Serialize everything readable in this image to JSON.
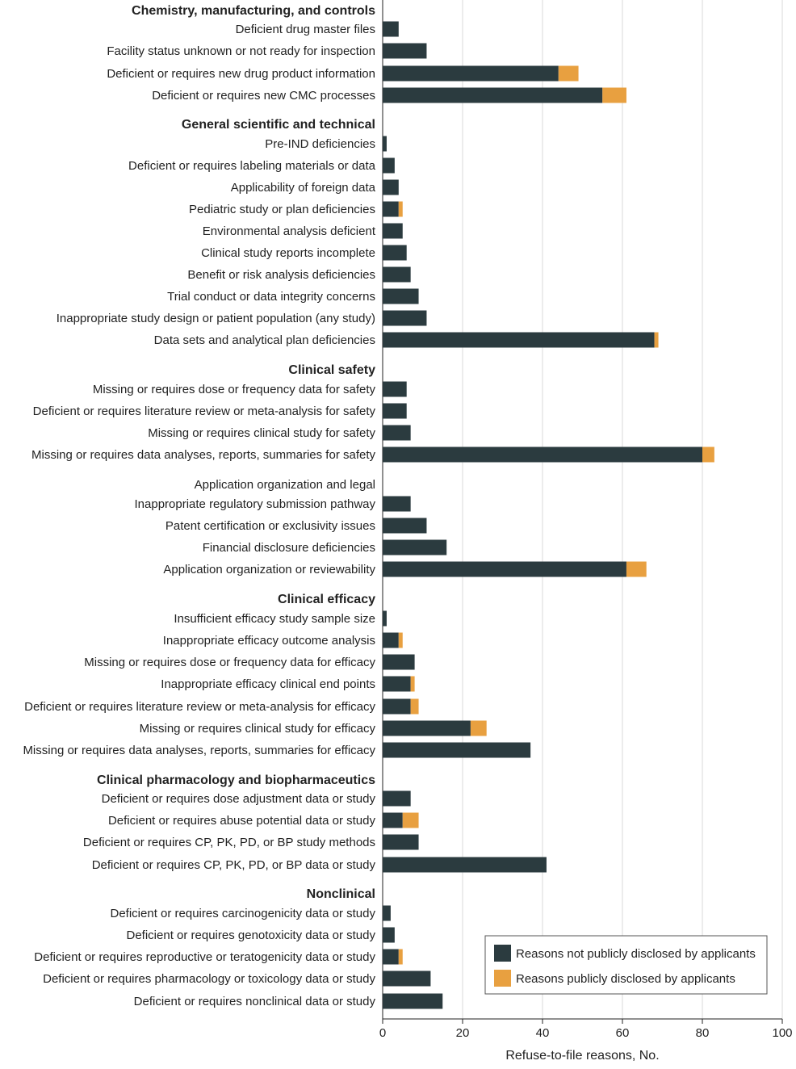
{
  "chart_data": {
    "type": "bar",
    "orientation": "horizontal",
    "stacked": true,
    "xlabel": "Refuse-to-file reasons, No.",
    "xlim": [
      0,
      100
    ],
    "xticks": [
      "0",
      "20",
      "40",
      "60",
      "80",
      "100"
    ],
    "grid": "vertical",
    "legend_position": "bottom-right",
    "series": [
      {
        "name": "Reasons not publicly disclosed by applicants",
        "color": "#2b3b3f"
      },
      {
        "name": "Reasons publicly disclosed by applicants",
        "color": "#e8a040"
      }
    ],
    "groups": [
      {
        "name": "Chemistry, manufacturing, and controls",
        "bold": true,
        "items": [
          {
            "label": "Deficient drug master files",
            "not_disclosed": 4,
            "disclosed": 0
          },
          {
            "label": "Facility status unknown or not ready for inspection",
            "not_disclosed": 11,
            "disclosed": 0
          },
          {
            "label": "Deficient or requires new drug product information",
            "not_disclosed": 44,
            "disclosed": 5
          },
          {
            "label": "Deficient or requires new CMC processes",
            "not_disclosed": 55,
            "disclosed": 6
          }
        ]
      },
      {
        "name": "General scientific and technical",
        "bold": true,
        "items": [
          {
            "label": "Pre-IND deficiencies",
            "not_disclosed": 1,
            "disclosed": 0
          },
          {
            "label": "Deficient or requires labeling materials or data",
            "not_disclosed": 3,
            "disclosed": 0
          },
          {
            "label": "Applicability of foreign data",
            "not_disclosed": 4,
            "disclosed": 0
          },
          {
            "label": "Pediatric study or plan deficiencies",
            "not_disclosed": 4,
            "disclosed": 1
          },
          {
            "label": "Environmental analysis deficient",
            "not_disclosed": 5,
            "disclosed": 0
          },
          {
            "label": "Clinical study reports incomplete",
            "not_disclosed": 6,
            "disclosed": 0
          },
          {
            "label": "Benefit or risk analysis deficiencies",
            "not_disclosed": 7,
            "disclosed": 0
          },
          {
            "label": "Trial conduct or data integrity concerns",
            "not_disclosed": 9,
            "disclosed": 0
          },
          {
            "label": "Inappropriate study design or patient population (any study)",
            "not_disclosed": 11,
            "disclosed": 0
          },
          {
            "label": "Data sets and analytical plan deficiencies",
            "not_disclosed": 68,
            "disclosed": 1
          }
        ]
      },
      {
        "name": "Clinical safety",
        "bold": true,
        "items": [
          {
            "label": "Missing or requires dose or frequency data for safety",
            "not_disclosed": 6,
            "disclosed": 0
          },
          {
            "label": "Deficient or requires literature review or meta-analysis for safety",
            "not_disclosed": 6,
            "disclosed": 0
          },
          {
            "label": "Missing or requires clinical study for safety",
            "not_disclosed": 7,
            "disclosed": 0
          },
          {
            "label": "Missing or requires data analyses, reports, summaries for safety",
            "not_disclosed": 80,
            "disclosed": 3
          }
        ]
      },
      {
        "name": "Application organization and legal",
        "bold": false,
        "items": [
          {
            "label": "Inappropriate regulatory submission pathway",
            "not_disclosed": 7,
            "disclosed": 0
          },
          {
            "label": "Patent certification or exclusivity issues",
            "not_disclosed": 11,
            "disclosed": 0
          },
          {
            "label": "Financial disclosure deficiencies",
            "not_disclosed": 16,
            "disclosed": 0
          },
          {
            "label": "Application organization or reviewability",
            "not_disclosed": 61,
            "disclosed": 5
          }
        ]
      },
      {
        "name": "Clinical efficacy",
        "bold": true,
        "items": [
          {
            "label": "Insufficient efficacy study sample size",
            "not_disclosed": 1,
            "disclosed": 0
          },
          {
            "label": "Inappropriate efficacy outcome analysis",
            "not_disclosed": 4,
            "disclosed": 1
          },
          {
            "label": "Missing or requires dose or frequency data for efficacy",
            "not_disclosed": 8,
            "disclosed": 0
          },
          {
            "label": "Inappropriate efficacy clinical end points",
            "not_disclosed": 7,
            "disclosed": 1
          },
          {
            "label": "Deficient or requires literature review or meta-analysis for efficacy",
            "not_disclosed": 7,
            "disclosed": 2
          },
          {
            "label": "Missing or requires clinical study for efficacy",
            "not_disclosed": 22,
            "disclosed": 4
          },
          {
            "label": "Missing or requires data analyses, reports, summaries for efficacy",
            "not_disclosed": 37,
            "disclosed": 0
          }
        ]
      },
      {
        "name": "Clinical pharmacology and biopharmaceutics",
        "bold": true,
        "items": [
          {
            "label": "Deficient or requires dose adjustment data or study",
            "not_disclosed": 7,
            "disclosed": 0
          },
          {
            "label": "Deficient or requires abuse potential data or study",
            "not_disclosed": 5,
            "disclosed": 4
          },
          {
            "label": "Deficient or requires CP, PK, PD, or BP study methods",
            "not_disclosed": 9,
            "disclosed": 0
          },
          {
            "label": "Deficient or requires CP, PK, PD, or BP data or study",
            "not_disclosed": 41,
            "disclosed": 0
          }
        ]
      },
      {
        "name": "Nonclinical",
        "bold": true,
        "items": [
          {
            "label": "Deficient or requires carcinogenicity data or study",
            "not_disclosed": 2,
            "disclosed": 0
          },
          {
            "label": "Deficient or requires genotoxicity data or study",
            "not_disclosed": 3,
            "disclosed": 0
          },
          {
            "label": "Deficient or requires reproductive or teratogenicity data or study",
            "not_disclosed": 4,
            "disclosed": 1
          },
          {
            "label": "Deficient or requires pharmacology or toxicology data or study",
            "not_disclosed": 12,
            "disclosed": 0
          },
          {
            "label": "Deficient or requires nonclinical data or study",
            "not_disclosed": 15,
            "disclosed": 0
          }
        ]
      }
    ]
  }
}
